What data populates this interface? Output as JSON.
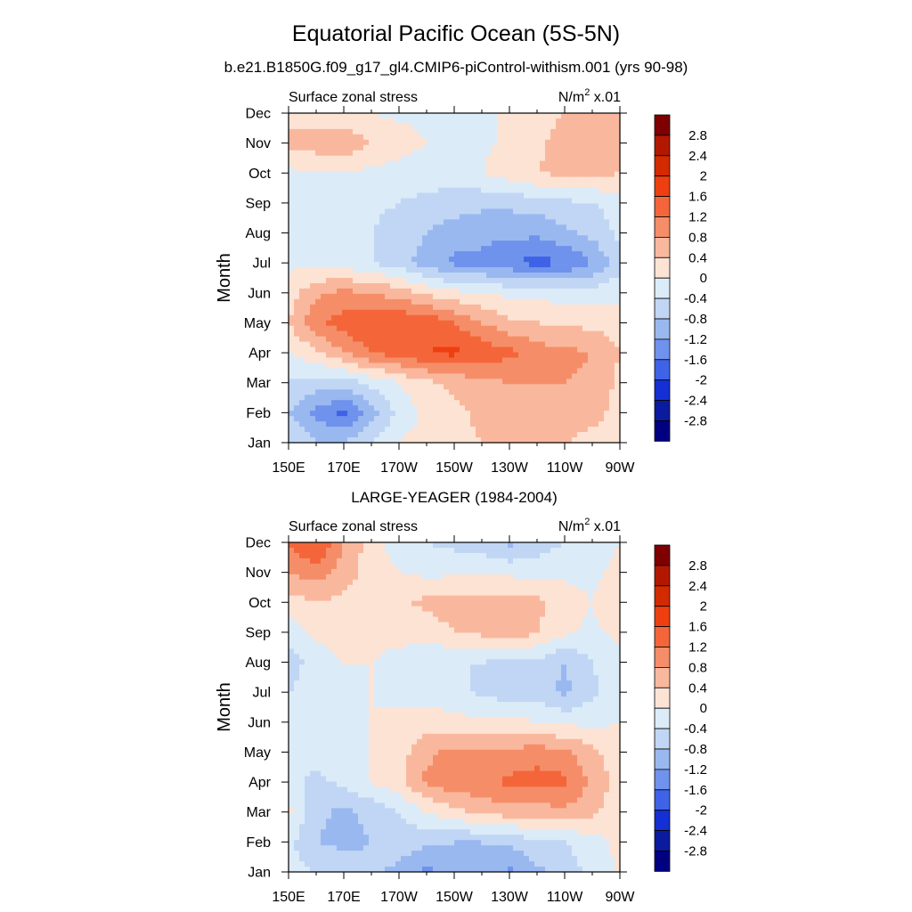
{
  "figure": {
    "title": "Equatorial Pacific Ocean (5S-5N)",
    "subtitle": "b.e21.B1850G.f09_g17_gl4.CMIP6-piControl-withism.001 (yrs 90-98)"
  },
  "colorbar": {
    "levels": [
      "2.8",
      "2.4",
      "2",
      "1.6",
      "1.2",
      "0.8",
      "0.4",
      "0",
      "-0.4",
      "-0.8",
      "-1.2",
      "-1.6",
      "-2",
      "-2.4",
      "-2.8"
    ],
    "colors": [
      "#7f0000",
      "#b21800",
      "#d42a00",
      "#ee3f10",
      "#f4663a",
      "#f58e68",
      "#f9b89e",
      "#fde3d4",
      "#dcebf8",
      "#c0d6f4",
      "#9ab8f0",
      "#6f92ec",
      "#3e63e6",
      "#1430d4",
      "#0a1ba0",
      "#000080"
    ]
  },
  "chart_data": [
    {
      "type": "heatmap",
      "title": "",
      "left_label": "Surface zonal stress",
      "right_label": "N/m",
      "right_label_sup": "2",
      "right_label_suffix": " x.01",
      "xlabel": "",
      "ylabel": "Month",
      "x_ticks": [
        "150E",
        "170E",
        "170W",
        "150W",
        "130W",
        "110W",
        "90W"
      ],
      "x_tick_values": [
        150,
        170,
        190,
        210,
        230,
        250,
        270
      ],
      "y_ticks": [
        "Jan",
        "Feb",
        "Mar",
        "Apr",
        "May",
        "Jun",
        "Jul",
        "Aug",
        "Sep",
        "Oct",
        "Nov",
        "Dec"
      ],
      "xlim": [
        150,
        270
      ],
      "value_scale": 0.01,
      "units": "N/m2",
      "x": [
        150,
        160,
        170,
        180,
        190,
        200,
        210,
        220,
        230,
        240,
        250,
        260,
        270
      ],
      "y": [
        "Jan",
        "Feb",
        "Mar",
        "Apr",
        "May",
        "Jun",
        "Jul",
        "Aug",
        "Sep",
        "Oct",
        "Nov",
        "Dec"
      ],
      "z": [
        [
          -0.4,
          -0.8,
          -0.8,
          -0.4,
          0.0,
          0.2,
          0.3,
          0.4,
          0.4,
          0.4,
          0.4,
          0.3,
          0.2
        ],
        [
          -0.8,
          -1.3,
          -1.7,
          -1.0,
          -0.3,
          0.1,
          0.3,
          0.5,
          0.6,
          0.6,
          0.6,
          0.5,
          0.3
        ],
        [
          -0.4,
          -0.6,
          -0.6,
          -0.3,
          0.0,
          0.3,
          0.5,
          0.7,
          0.8,
          0.8,
          0.8,
          0.7,
          0.3
        ],
        [
          0.0,
          0.3,
          0.8,
          1.2,
          1.4,
          1.6,
          1.7,
          1.5,
          1.3,
          1.0,
          0.9,
          0.8,
          0.4
        ],
        [
          0.4,
          1.1,
          1.4,
          1.6,
          1.6,
          1.5,
          1.2,
          0.8,
          0.5,
          0.4,
          0.3,
          0.3,
          0.2
        ],
        [
          0.2,
          0.7,
          0.9,
          0.8,
          0.6,
          0.3,
          0.1,
          0.0,
          -0.1,
          -0.1,
          -0.2,
          -0.2,
          -0.1
        ],
        [
          -0.1,
          -0.1,
          -0.2,
          -0.4,
          -0.6,
          -1.0,
          -1.3,
          -1.3,
          -1.5,
          -1.8,
          -1.6,
          -1.2,
          -0.6
        ],
        [
          -0.2,
          -0.2,
          -0.3,
          -0.4,
          -0.6,
          -0.8,
          -1.0,
          -1.1,
          -1.1,
          -1.1,
          -0.9,
          -0.7,
          -0.3
        ],
        [
          -0.2,
          -0.1,
          -0.2,
          -0.3,
          -0.4,
          -0.5,
          -0.6,
          -0.7,
          -0.7,
          -0.6,
          -0.5,
          -0.4,
          -0.2
        ],
        [
          -0.1,
          0.0,
          0.0,
          -0.1,
          -0.2,
          -0.2,
          -0.2,
          0.0,
          0.2,
          0.4,
          0.5,
          0.5,
          0.4
        ],
        [
          0.5,
          0.6,
          0.7,
          0.4,
          0.2,
          0.0,
          -0.1,
          -0.1,
          0.1,
          0.3,
          0.6,
          0.6,
          0.5
        ],
        [
          0.3,
          0.2,
          0.1,
          0.0,
          -0.1,
          -0.1,
          -0.1,
          0.0,
          0.0,
          0.2,
          0.4,
          0.5,
          0.4
        ]
      ]
    },
    {
      "type": "heatmap",
      "title": "LARGE-YEAGER (1984-2004)",
      "left_label": "Surface zonal stress",
      "right_label": "N/m",
      "right_label_sup": "2",
      "right_label_suffix": " x.01",
      "xlabel": "",
      "ylabel": "Month",
      "x_ticks": [
        "150E",
        "170E",
        "170W",
        "150W",
        "130W",
        "110W",
        "90W"
      ],
      "x_tick_values": [
        150,
        170,
        190,
        210,
        230,
        250,
        270
      ],
      "y_ticks": [
        "Jan",
        "Feb",
        "Mar",
        "Apr",
        "May",
        "Jun",
        "Jul",
        "Aug",
        "Sep",
        "Oct",
        "Nov",
        "Dec"
      ],
      "xlim": [
        150,
        270
      ],
      "value_scale": 0.01,
      "units": "N/m2",
      "x": [
        150,
        160,
        170,
        180,
        190,
        200,
        210,
        220,
        230,
        240,
        250,
        260,
        270
      ],
      "y": [
        "Jan",
        "Feb",
        "Mar",
        "Apr",
        "May",
        "Jun",
        "Jul",
        "Aug",
        "Sep",
        "Oct",
        "Nov",
        "Dec"
      ],
      "z": [
        [
          -0.2,
          -0.4,
          -0.6,
          -0.7,
          -0.9,
          -1.3,
          -1.0,
          -0.9,
          -1.3,
          -0.9,
          -0.6,
          -0.3,
          0.1
        ],
        [
          -0.3,
          -0.8,
          -0.9,
          -0.8,
          -0.6,
          -0.7,
          -0.8,
          -0.8,
          -0.7,
          -0.5,
          -0.4,
          -0.2,
          0.1
        ],
        [
          0.1,
          -0.7,
          -0.9,
          -0.7,
          -0.4,
          0.0,
          0.3,
          0.5,
          0.6,
          0.6,
          0.7,
          0.5,
          0.1
        ],
        [
          -0.3,
          -0.5,
          -0.3,
          0.0,
          0.3,
          0.9,
          1.1,
          1.1,
          1.3,
          1.4,
          1.3,
          0.7,
          0.2
        ],
        [
          -0.3,
          -0.3,
          -0.1,
          0.0,
          0.2,
          0.7,
          0.9,
          0.9,
          0.9,
          1.0,
          0.9,
          0.5,
          0.1
        ],
        [
          -0.3,
          -0.3,
          -0.1,
          0.0,
          0.1,
          0.2,
          0.1,
          0.1,
          0.1,
          0.0,
          -0.1,
          -0.1,
          0.0
        ],
        [
          -0.4,
          -0.2,
          -0.1,
          0.0,
          -0.1,
          -0.2,
          -0.2,
          -0.5,
          -0.6,
          -0.6,
          -0.9,
          -0.5,
          -0.1
        ],
        [
          -0.6,
          -0.2,
          0.0,
          0.0,
          -0.2,
          -0.4,
          -0.4,
          -0.4,
          -0.5,
          -0.5,
          -0.8,
          -0.4,
          -0.1
        ],
        [
          -0.2,
          0.1,
          0.2,
          0.2,
          0.2,
          0.2,
          0.4,
          0.5,
          0.7,
          0.4,
          0.1,
          -0.1,
          0.1
        ],
        [
          0.2,
          0.4,
          0.3,
          0.2,
          0.3,
          0.5,
          0.6,
          0.6,
          0.6,
          0.5,
          0.2,
          0.0,
          0.4
        ],
        [
          0.8,
          1.0,
          0.6,
          0.2,
          0.0,
          -0.1,
          -0.1,
          -0.1,
          -0.1,
          -0.2,
          -0.1,
          -0.1,
          0.1
        ],
        [
          1.2,
          1.7,
          0.8,
          0.2,
          -0.2,
          -0.4,
          -0.5,
          -0.6,
          -0.9,
          -0.6,
          -0.4,
          -0.2,
          0.0
        ]
      ]
    }
  ]
}
